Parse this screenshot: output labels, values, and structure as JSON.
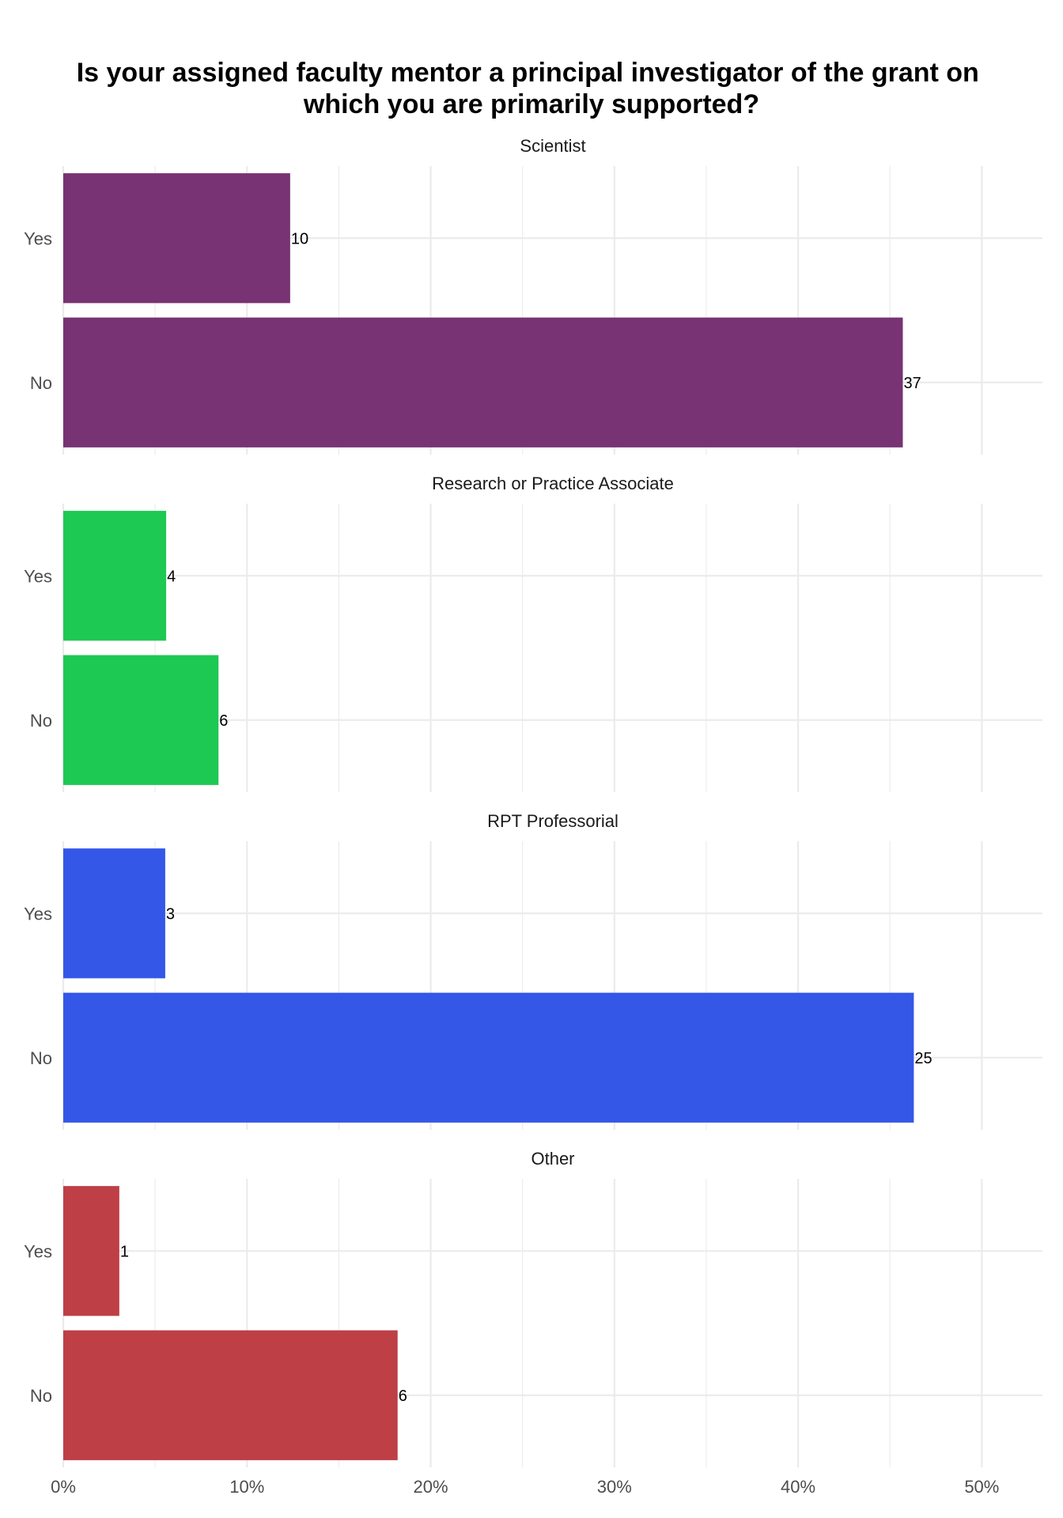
{
  "chart_data": {
    "type": "bar",
    "orientation": "horizontal",
    "title": "Is your assigned faculty mentor a principal investigator of the grant on which you are primarily supported?",
    "categories": [
      "Yes",
      "No"
    ],
    "x_axis": {
      "ticks": [
        0,
        10,
        20,
        30,
        40,
        50
      ],
      "tick_labels": [
        "0%",
        "10%",
        "20%",
        "30%",
        "40%",
        "50%"
      ],
      "xlim": [
        0,
        53.3
      ]
    },
    "grid": true,
    "legend": "none",
    "facets": [
      {
        "name": "Scientist",
        "color": "#773373",
        "values": [
          12.35,
          45.7
        ],
        "labels": [
          "10",
          "37"
        ]
      },
      {
        "name": "Research or Practice Associate",
        "color": "#1DC853",
        "values": [
          5.6,
          8.45
        ],
        "labels": [
          "4",
          "6"
        ]
      },
      {
        "name": "RPT Professorial",
        "color": "#3557E7",
        "values": [
          5.55,
          46.3
        ],
        "labels": [
          "3",
          "25"
        ]
      },
      {
        "name": "Other",
        "color": "#BE3F45",
        "values": [
          3.05,
          18.2
        ],
        "labels": [
          "1",
          "6"
        ]
      }
    ]
  }
}
